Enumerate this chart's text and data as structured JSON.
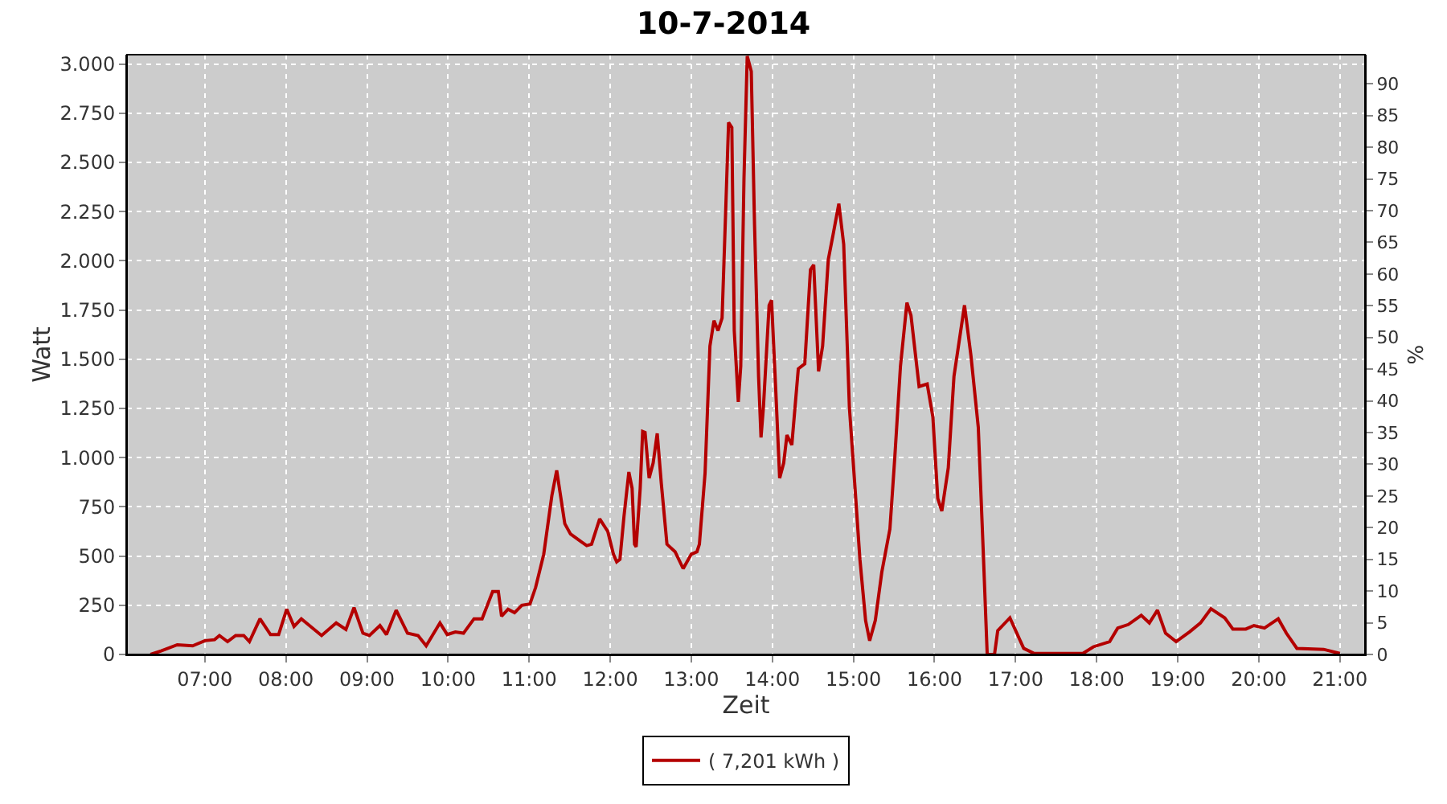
{
  "chart_data": {
    "type": "line",
    "title": "10-7-2014",
    "xlabel": "Zeit",
    "ylabel": "Watt",
    "y2label": "%",
    "x": [
      6.33,
      6.46,
      6.66,
      6.85,
      7.0,
      7.12,
      7.18,
      7.28,
      7.38,
      7.48,
      7.55,
      7.68,
      7.81,
      7.91,
      8.01,
      8.1,
      8.19,
      8.44,
      8.62,
      8.74,
      8.84,
      8.95,
      9.03,
      9.16,
      9.24,
      9.36,
      9.5,
      9.63,
      9.73,
      9.9,
      9.99,
      10.09,
      10.19,
      10.32,
      10.42,
      10.55,
      10.62,
      10.66,
      10.74,
      10.82,
      10.91,
      11.01,
      11.08,
      11.18,
      11.28,
      11.34,
      11.44,
      11.51,
      11.64,
      11.71,
      11.77,
      11.87,
      11.97,
      12.04,
      12.08,
      12.12,
      12.17,
      12.23,
      12.27,
      12.3,
      12.32,
      12.37,
      12.4,
      12.43,
      12.48,
      12.53,
      12.58,
      12.63,
      12.7,
      12.8,
      12.9,
      13.0,
      13.07,
      13.1,
      13.17,
      13.23,
      13.28,
      13.33,
      13.38,
      13.42,
      13.46,
      13.5,
      13.53,
      13.58,
      13.61,
      13.65,
      13.69,
      13.74,
      13.78,
      13.83,
      13.86,
      13.89,
      13.96,
      13.99,
      14.04,
      14.09,
      14.14,
      14.18,
      14.24,
      14.32,
      14.4,
      14.47,
      14.51,
      14.57,
      14.62,
      14.69,
      14.75,
      14.82,
      14.88,
      14.95,
      15.02,
      15.08,
      15.15,
      15.2,
      15.27,
      15.35,
      15.45,
      15.51,
      15.58,
      15.66,
      15.71,
      15.81,
      15.91,
      15.98,
      16.04,
      16.09,
      16.17,
      16.24,
      16.37,
      16.45,
      16.54,
      16.6,
      16.65,
      16.74,
      16.78,
      16.93,
      17.1,
      17.23,
      17.83,
      17.96,
      18.16,
      18.26,
      18.39,
      18.55,
      18.65,
      18.75,
      18.85,
      18.98,
      19.15,
      19.28,
      19.41,
      19.58,
      19.68,
      19.84,
      19.94,
      20.07,
      20.24,
      20.34,
      20.47,
      20.8,
      21.0
    ],
    "series": [
      {
        "name": "( 7,201 kWh )",
        "color": "#b40000",
        "values": [
          0,
          18,
          49,
          44,
          70,
          75,
          96,
          65,
          96,
          96,
          65,
          181,
          101,
          101,
          230,
          142,
          181,
          96,
          160,
          127,
          238,
          108,
          96,
          147,
          101,
          225,
          108,
          96,
          44,
          160,
          101,
          114,
          108,
          181,
          181,
          320,
          320,
          194,
          230,
          212,
          250,
          256,
          341,
          509,
          806,
          935,
          664,
          612,
          573,
          553,
          560,
          689,
          625,
          509,
          470,
          483,
          702,
          927,
          844,
          560,
          547,
          844,
          1133,
          1128,
          896,
          973,
          1123,
          870,
          560,
          522,
          436,
          509,
          522,
          560,
          922,
          1567,
          1696,
          1645,
          1709,
          2200,
          2703,
          2677,
          1645,
          1283,
          1464,
          2419,
          3040,
          2962,
          2187,
          1412,
          1102,
          1257,
          1774,
          1800,
          1361,
          896,
          973,
          1115,
          1064,
          1451,
          1477,
          1955,
          1980,
          1438,
          1567,
          2006,
          2135,
          2290,
          2084,
          1257,
          844,
          483,
          173,
          70,
          173,
          418,
          638,
          999,
          1464,
          1787,
          1722,
          1361,
          1374,
          1206,
          793,
          728,
          948,
          1412,
          1774,
          1516,
          1154,
          534,
          0,
          0,
          121,
          186,
          31,
          5,
          5,
          39,
          65,
          134,
          152,
          199,
          160,
          225,
          108,
          65,
          116,
          160,
          232,
          186,
          129,
          129,
          147,
          134,
          181,
          108,
          31,
          26,
          5
        ]
      }
    ],
    "xlim": [
      6.04,
      21.31
    ],
    "xticks": [
      {
        "value": 7,
        "label": "07:00"
      },
      {
        "value": 8,
        "label": "08:00"
      },
      {
        "value": 9,
        "label": "09:00"
      },
      {
        "value": 10,
        "label": "10:00"
      },
      {
        "value": 11,
        "label": "11:00"
      },
      {
        "value": 12,
        "label": "12:00"
      },
      {
        "value": 13,
        "label": "13:00"
      },
      {
        "value": 14,
        "label": "14:00"
      },
      {
        "value": 15,
        "label": "15:00"
      },
      {
        "value": 16,
        "label": "16:00"
      },
      {
        "value": 17,
        "label": "17:00"
      },
      {
        "value": 18,
        "label": "18:00"
      },
      {
        "value": 19,
        "label": "19:00"
      },
      {
        "value": 20,
        "label": "20:00"
      },
      {
        "value": 21,
        "label": "21:00"
      }
    ],
    "ylim": [
      0,
      3047
    ],
    "yticks": [
      0,
      250,
      500,
      750,
      {
        "value": 1000,
        "label": "1.000"
      },
      {
        "value": 1250,
        "label": "1.250"
      },
      {
        "value": 1500,
        "label": "1.500"
      },
      {
        "value": 1750,
        "label": "1.750"
      },
      {
        "value": 2000,
        "label": "2.000"
      },
      {
        "value": 2250,
        "label": "2.250"
      },
      {
        "value": 2500,
        "label": "2.500"
      },
      {
        "value": 2750,
        "label": "2.750"
      },
      {
        "value": 3000,
        "label": "3.000"
      }
    ],
    "y2lim": [
      0,
      94.6
    ],
    "y2ticks": [
      0,
      5,
      10,
      15,
      20,
      25,
      30,
      35,
      40,
      45,
      50,
      55,
      60,
      65,
      70,
      75,
      80,
      85,
      90
    ],
    "grid": true,
    "legend": "bottom",
    "marker": "none",
    "line_style": "solid"
  }
}
